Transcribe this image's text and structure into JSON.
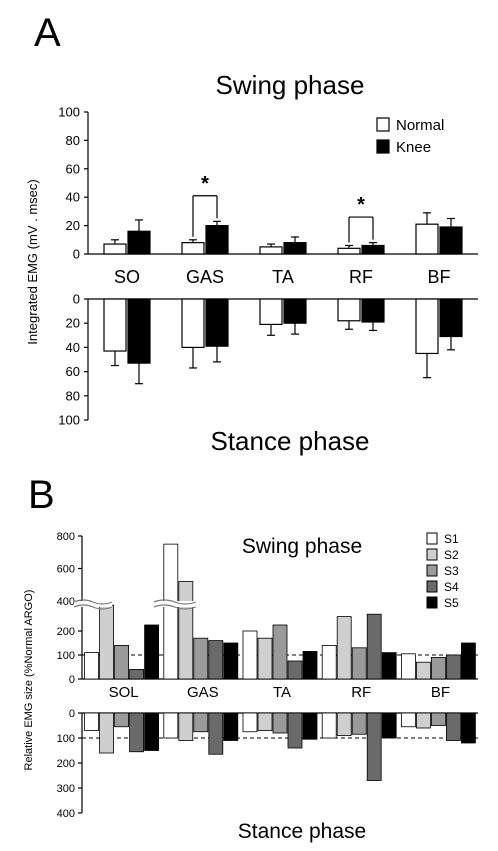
{
  "panel_a": {
    "letter": "A",
    "swing_title": "Swing phase",
    "stance_title": "Stance phase",
    "ylabel": "Integrated EMG (mV . msec)",
    "legend": [
      "Normal",
      "Knee"
    ],
    "significance_marker": "*"
  },
  "panel_b": {
    "letter": "B",
    "swing_title": "Swing phase",
    "stance_title": "Stance phase",
    "ylabel": "Relative EMG size (%Normal ARGO)",
    "legend": [
      "S1",
      "S2",
      "S3",
      "S4",
      "S5"
    ]
  },
  "colors": {
    "normal": "#ffffff",
    "knee": "#000000",
    "s1": "#ffffff",
    "s2": "#cfcfcf",
    "s3": "#9a9a9a",
    "s4": "#6a6a6a",
    "s5": "#000000"
  },
  "chart_data": [
    {
      "type": "bar",
      "panel": "A",
      "title": "Swing phase",
      "ylabel": "Integrated EMG (mV . msec)",
      "categories": [
        "SO",
        "GAS",
        "TA",
        "RF",
        "BF"
      ],
      "yticks": [
        0,
        20,
        40,
        60,
        80,
        100
      ],
      "ylim": [
        0,
        100
      ],
      "legend_position": "top-right",
      "series": [
        {
          "name": "Normal",
          "values": [
            7,
            8,
            5,
            4,
            21
          ],
          "errors": [
            3,
            2,
            2,
            2,
            8
          ]
        },
        {
          "name": "Knee",
          "values": [
            16,
            20,
            8,
            6,
            19
          ],
          "errors": [
            8,
            3,
            4,
            2,
            6
          ]
        }
      ],
      "significance": [
        {
          "category": "GAS",
          "label": "*"
        },
        {
          "category": "RF",
          "label": "*"
        }
      ]
    },
    {
      "type": "bar",
      "panel": "A",
      "title": "Stance phase",
      "ylabel": "Integrated EMG (mV . msec)",
      "categories": [
        "SO",
        "GAS",
        "TA",
        "RF",
        "BF"
      ],
      "yticks": [
        0,
        20,
        40,
        60,
        80,
        100
      ],
      "ylim": [
        0,
        100
      ],
      "inverted": true,
      "series": [
        {
          "name": "Normal",
          "values": [
            43,
            40,
            21,
            18,
            45
          ],
          "errors": [
            12,
            17,
            9,
            7,
            20
          ]
        },
        {
          "name": "Knee",
          "values": [
            53,
            39,
            20,
            19,
            31
          ],
          "errors": [
            17,
            13,
            9,
            7,
            11
          ]
        }
      ]
    },
    {
      "type": "bar",
      "panel": "B",
      "title": "Swing phase",
      "ylabel": "Relative EMG size (%Normal ARGO)",
      "categories": [
        "SOL",
        "GAS",
        "TA",
        "RF",
        "BF"
      ],
      "yticks": [
        0,
        100,
        200,
        400,
        600,
        800
      ],
      "axis_break": true,
      "reference_line": 100,
      "legend_position": "top-right",
      "series": [
        {
          "name": "S1",
          "values": [
            110,
            750,
            200,
            140,
            105
          ]
        },
        {
          "name": "S2",
          "values": [
            330,
            520,
            170,
            260,
            70
          ]
        },
        {
          "name": "S3",
          "values": [
            140,
            170,
            225,
            130,
            90
          ]
        },
        {
          "name": "S4",
          "values": [
            40,
            160,
            75,
            270,
            100
          ]
        },
        {
          "name": "S5",
          "values": [
            225,
            150,
            115,
            110,
            150
          ]
        }
      ]
    },
    {
      "type": "bar",
      "panel": "B",
      "title": "Stance phase",
      "ylabel": "Relative EMG size (%Normal ARGO)",
      "categories": [
        "SOL",
        "GAS",
        "TA",
        "RF",
        "BF"
      ],
      "yticks": [
        0,
        100,
        200,
        300,
        400
      ],
      "ylim": [
        0,
        400
      ],
      "inverted": true,
      "reference_line": 100,
      "series": [
        {
          "name": "S1",
          "values": [
            70,
            100,
            75,
            100,
            55
          ]
        },
        {
          "name": "S2",
          "values": [
            160,
            110,
            70,
            90,
            60
          ]
        },
        {
          "name": "S3",
          "values": [
            55,
            75,
            80,
            85,
            50
          ]
        },
        {
          "name": "S4",
          "values": [
            155,
            165,
            140,
            270,
            110
          ]
        },
        {
          "name": "S5",
          "values": [
            150,
            110,
            105,
            100,
            120
          ]
        }
      ]
    }
  ]
}
